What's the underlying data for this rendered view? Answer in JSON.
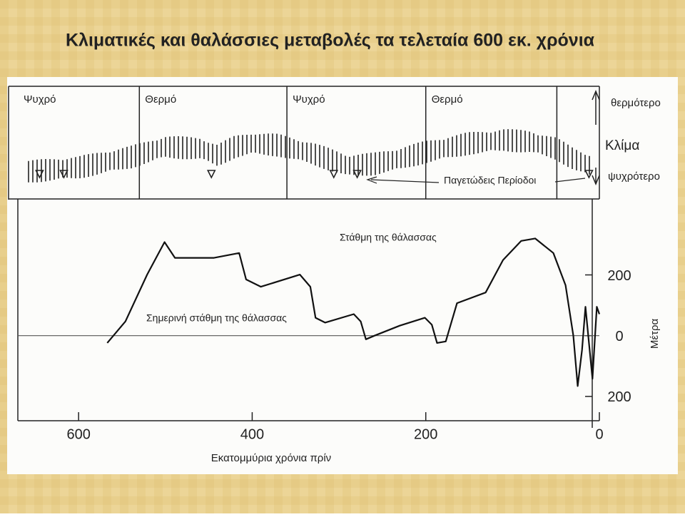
{
  "slide_title": "Κλιματικές και θαλάσσιες μεταβολές τα τελεταία 600 εκ. χρόνια",
  "chart_data": {
    "type": "line",
    "series": [
      {
        "name": "Στάθμη της θάλασσας",
        "color": "#111111",
        "x": [
          567,
          546,
          521,
          501,
          489,
          444,
          415,
          407,
          390,
          345,
          333,
          327,
          316,
          283,
          275,
          269,
          259,
          230,
          201,
          193,
          187,
          177,
          164,
          131,
          111,
          90,
          74,
          53,
          39,
          30,
          25,
          20,
          16,
          12,
          8,
          3,
          0
        ],
        "values": [
          -24,
          47,
          201,
          308,
          256,
          256,
          272,
          185,
          161,
          201,
          161,
          59,
          43,
          71,
          47,
          -12,
          0,
          33,
          59,
          36,
          -24,
          -19,
          107,
          142,
          249,
          312,
          320,
          272,
          166,
          0,
          -166,
          -47,
          95,
          -24,
          -142,
          95,
          71
        ]
      }
    ],
    "reference_line": {
      "value": 0,
      "label": "Σημερινή στάθμη της θάλασσας"
    },
    "xlim": [
      670,
      0
    ],
    "xticks": [
      600,
      400,
      200,
      0
    ],
    "ylim": [
      -280,
      450
    ],
    "yticks": [
      {
        "value": -200,
        "label": "200"
      },
      0,
      200
    ],
    "x_label": "Εκατομμύρια χρόνια πρίν",
    "y_label": "Μέτρα",
    "climate": {
      "periods": [
        "Ψυχρό",
        "Θερμό",
        "Ψυχρό",
        "Θερμό"
      ],
      "boundaries": [
        530,
        360,
        200,
        49
      ],
      "x": [
        670,
        600,
        540,
        500,
        460,
        440,
        420,
        400,
        370,
        330,
        290,
        260,
        230,
        200,
        150,
        110,
        80,
        50,
        30,
        10,
        0
      ],
      "values": [
        -1,
        -0.7,
        -0.1,
        0.5,
        0.4,
        0.0,
        0.5,
        0.7,
        0.6,
        0.1,
        -0.6,
        -0.5,
        -0.2,
        0.2,
        0.7,
        0.9,
        0.8,
        0.4,
        -0.2,
        -0.6,
        -0.7
      ],
      "glacial_periods": [
        645,
        617,
        447,
        306,
        279,
        12
      ],
      "glacial_label": "Παγετώδεις Περίοδοι",
      "title": "Κλίμα",
      "warmer": "θερμότερο",
      "colder": "ψυχρότερο"
    }
  }
}
